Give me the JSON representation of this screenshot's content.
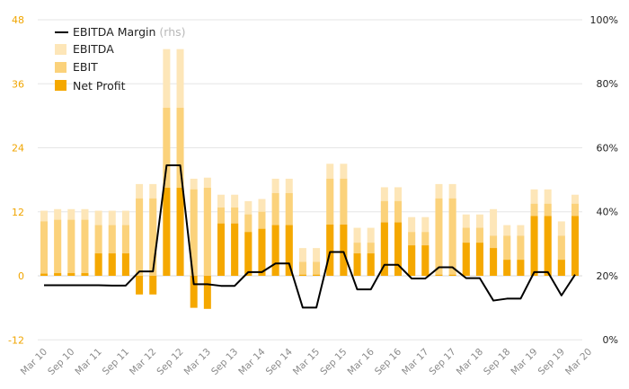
{
  "chart_data": {
    "type": "bar",
    "colors": {
      "ebitda": "#fde6b8",
      "ebit": "#fbd27b",
      "net_profit": "#f5a800",
      "margin_line": "#000000",
      "left_axis": "#f0a500",
      "grid": "#e6e6e6"
    },
    "x_labels": [
      "Mar 10",
      "Sep 10",
      "Mar 11",
      "Sep 11",
      "Mar 12",
      "Sep 12",
      "Mar 13",
      "Sep 13",
      "Mar 14",
      "Sep 14",
      "Mar 15",
      "Sep 15",
      "Mar 16",
      "Sep 16",
      "Mar 17",
      "Sep 17",
      "Mar 18",
      "Sep 18",
      "Mar 19",
      "Sep 19",
      "Mar 20"
    ],
    "y_left": {
      "ticks": [
        "48",
        "36",
        "24",
        "12",
        "0",
        "-12"
      ],
      "min": -12,
      "max": 48
    },
    "y_right": {
      "ticks": [
        "100%",
        "80%",
        "60%",
        "40%",
        "20%",
        "0%"
      ],
      "min": 0,
      "max": 100
    },
    "legend": {
      "margin_label": "EBITDA Margin",
      "margin_sub": "(rhs)",
      "ebitda_label": "EBITDA",
      "ebit_label": "EBIT",
      "net_profit_label": "Net Profit"
    },
    "series": {
      "ebitda": [
        12.2,
        12.5,
        12.5,
        12.5,
        12.2,
        12.2,
        12.2,
        17.2,
        17.2,
        42.5,
        42.5,
        18.2,
        18.4,
        15.2,
        15.2,
        14.0,
        14.4,
        18.2,
        18.2,
        5.2,
        5.2,
        21.0,
        21.0,
        9.0,
        9.0,
        16.6,
        16.6,
        11.0,
        11.0,
        17.2,
        17.2,
        11.5,
        11.5,
        12.5,
        9.5,
        9.5,
        16.2,
        16.2,
        10.2,
        15.2
      ],
      "ebit": [
        10.2,
        10.5,
        10.5,
        10.5,
        9.5,
        9.5,
        9.5,
        14.5,
        14.5,
        31.5,
        31.5,
        16.2,
        16.5,
        12.8,
        12.8,
        11.5,
        12.0,
        15.5,
        15.5,
        2.6,
        2.6,
        18.2,
        18.2,
        6.2,
        6.2,
        14.0,
        14.0,
        8.2,
        8.2,
        14.5,
        14.5,
        9.0,
        9.0,
        7.5,
        7.5,
        7.5,
        13.5,
        13.5,
        7.5,
        13.5
      ],
      "net_profit": [
        0.4,
        0.5,
        0.5,
        0.5,
        4.2,
        4.2,
        4.2,
        -3.5,
        -3.5,
        16.5,
        16.5,
        -6.0,
        -6.2,
        9.8,
        9.8,
        8.2,
        8.8,
        9.5,
        9.5,
        0.2,
        0.2,
        9.6,
        9.6,
        4.2,
        4.2,
        10.0,
        10.0,
        5.7,
        5.7,
        0.2,
        0.2,
        6.2,
        6.2,
        5.2,
        3.0,
        3.0,
        11.2,
        11.2,
        3.0,
        11.2
      ],
      "margin_pct": [
        17.0,
        17.0,
        17.0,
        17.0,
        17.0,
        16.9,
        16.9,
        21.3,
        21.3,
        54.5,
        54.5,
        17.3,
        17.3,
        16.8,
        16.8,
        21.1,
        21.1,
        23.8,
        23.8,
        10.0,
        10.0,
        27.4,
        27.4,
        15.7,
        15.7,
        23.4,
        23.4,
        19.1,
        19.1,
        22.6,
        22.6,
        19.2,
        19.2,
        12.2,
        12.8,
        12.8,
        21.1,
        21.1,
        13.8,
        20.3
      ]
    }
  }
}
